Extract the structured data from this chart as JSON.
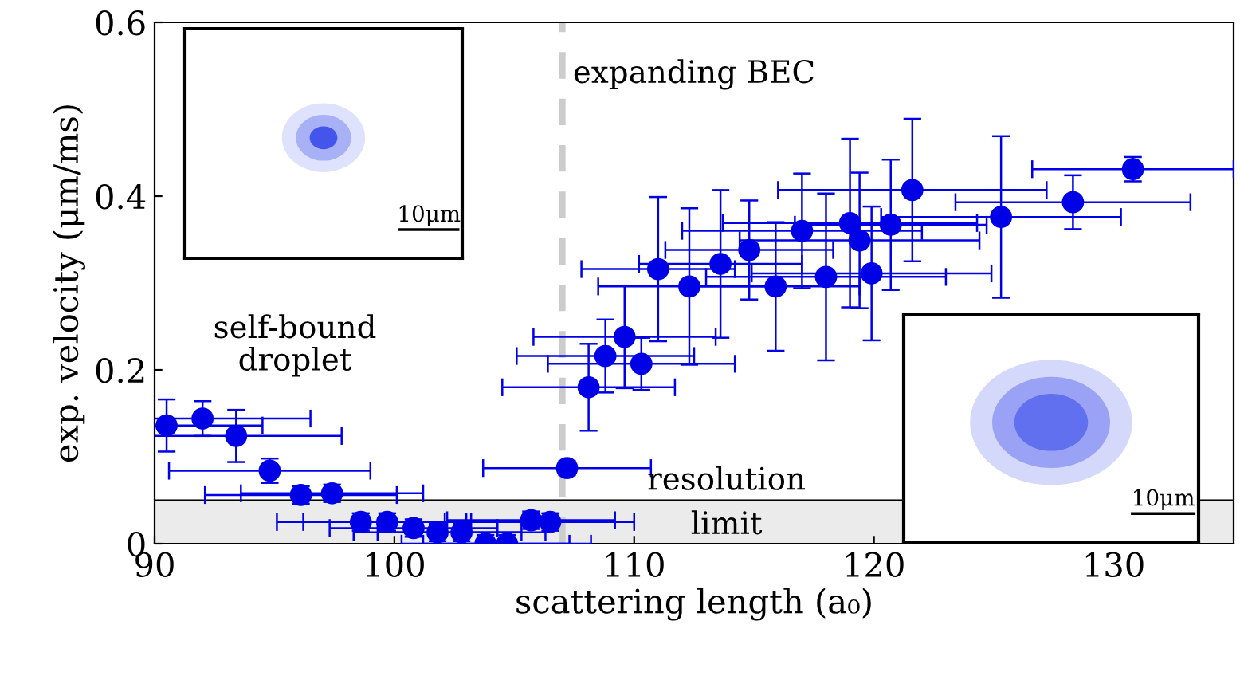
{
  "chart_data": {
    "type": "scatter",
    "xlabel": "scattering length (a₀)",
    "ylabel": "exp. velocity (μm/ms)",
    "xlim": [
      90,
      135
    ],
    "xticks": [
      90,
      100,
      110,
      120,
      130
    ],
    "ylim": [
      0,
      0.6
    ],
    "yticks": [
      0,
      0.2,
      0.4,
      0.6
    ],
    "grid": false,
    "marker": "circle",
    "x": [
      90.5,
      92.0,
      93.4,
      94.8,
      96.1,
      97.4,
      98.6,
      99.7,
      100.8,
      101.8,
      102.8,
      103.8,
      104.7,
      105.7,
      106.5,
      107.2,
      108.1,
      108.8,
      109.6,
      110.3,
      111.0,
      112.3,
      113.6,
      114.8,
      115.9,
      117.0,
      118.0,
      119.0,
      119.4,
      119.9,
      120.7,
      121.6,
      125.3,
      128.3,
      130.8
    ],
    "series": [
      {
        "color": "#0000e6",
        "values": [
          0.136,
          0.144,
          0.124,
          0.084,
          0.056,
          0.058,
          0.025,
          0.025,
          0.018,
          0.013,
          0.013,
          0.0,
          0.0,
          0.027,
          0.025,
          0.087,
          0.18,
          0.216,
          0.238,
          0.207,
          0.316,
          0.296,
          0.322,
          0.338,
          0.296,
          0.36,
          0.307,
          0.369,
          0.349,
          0.311,
          0.367,
          0.407,
          0.376,
          0.393,
          0.431
        ],
        "errors": [
          0.03,
          0.02,
          0.03,
          0.014,
          0.01,
          0.01,
          0.01,
          0.01,
          0.01,
          0.01,
          0.01,
          0.01,
          0.01,
          0.01,
          0.01,
          0.008,
          0.05,
          0.042,
          0.059,
          0.03,
          0.083,
          0.09,
          0.085,
          0.057,
          0.074,
          0.066,
          0.096,
          0.097,
          0.078,
          0.077,
          0.075,
          0.082,
          0.093,
          0.031,
          0.014
        ],
        "xerrors": [
          4,
          4.5,
          4.4,
          4.2,
          4,
          3.8,
          3.5,
          3.5,
          3.5,
          3.5,
          3.5,
          3.5,
          3.5,
          3.5,
          3.5,
          3.5,
          3.6,
          3.7,
          3.8,
          3.9,
          3.2,
          3.8,
          3.4,
          3.5,
          3.5,
          5,
          5,
          5.3,
          5,
          5,
          4,
          5.6,
          5,
          4.9,
          4.2
        ]
      }
    ],
    "ref_lines": [
      {
        "axis": "x",
        "value": 107,
        "color": "#cccccc",
        "line_style": "dashed"
      },
      {
        "axis": "y",
        "value": 0.05,
        "color": "#000000",
        "line_style": "solid"
      }
    ],
    "bands": [
      {
        "axis": "y",
        "from": 0,
        "to": 0.05,
        "color": "#ebebeb"
      }
    ],
    "annotations": [
      "expanding BEC",
      "self-bound\ndroplet",
      "resolution",
      "limit",
      "10μm",
      "10μm"
    ]
  }
}
